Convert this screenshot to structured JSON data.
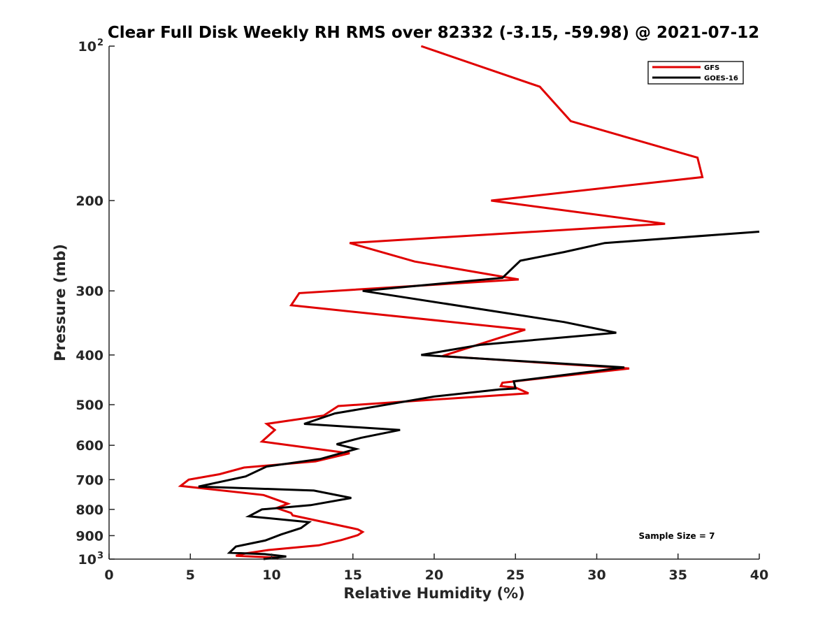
{
  "chart_data": {
    "type": "line",
    "title": "Clear Full Disk Weekly RH RMS over 82332 (-3.15, -59.98) @ 2021-07-12",
    "xlabel": "Relative Humidity (%)",
    "ylabel": "Pressure (mb)",
    "xlim": [
      0,
      40
    ],
    "ylim": [
      100,
      1000
    ],
    "y_scale": "log",
    "y_reversed": true,
    "grid": false,
    "legend_position": "top-right",
    "x_ticks": [
      0,
      5,
      10,
      15,
      20,
      25,
      30,
      35,
      40
    ],
    "y_ticks": [
      {
        "value": 100,
        "label": "10",
        "sup": "2"
      },
      {
        "value": 200,
        "label": "200"
      },
      {
        "value": 300,
        "label": "300"
      },
      {
        "value": 400,
        "label": "400"
      },
      {
        "value": 500,
        "label": "500"
      },
      {
        "value": 600,
        "label": "600"
      },
      {
        "value": 700,
        "label": "700"
      },
      {
        "value": 800,
        "label": "800"
      },
      {
        "value": 900,
        "label": "900"
      },
      {
        "value": 1000,
        "label": "10",
        "sup": "3"
      }
    ],
    "annotation": "Sample Size = 7",
    "series": [
      {
        "name": "GFS",
        "color": "#e00000",
        "points": [
          [
            19.2,
            100
          ],
          [
            26.5,
            120
          ],
          [
            28.4,
            140
          ],
          [
            36.2,
            165
          ],
          [
            36.5,
            180
          ],
          [
            23.5,
            200
          ],
          [
            34.2,
            222
          ],
          [
            14.8,
            242
          ],
          [
            18.8,
            263
          ],
          [
            25.2,
            285
          ],
          [
            11.7,
            303
          ],
          [
            11.2,
            320
          ],
          [
            25.6,
            357
          ],
          [
            20.5,
            402
          ],
          [
            32.0,
            425
          ],
          [
            24.2,
            453
          ],
          [
            24.1,
            460
          ],
          [
            25.0,
            463
          ],
          [
            25.8,
            475
          ],
          [
            14.1,
            503
          ],
          [
            13.2,
            525
          ],
          [
            9.7,
            545
          ],
          [
            10.2,
            560
          ],
          [
            9.4,
            590
          ],
          [
            14.8,
            622
          ],
          [
            12.7,
            645
          ],
          [
            8.3,
            663
          ],
          [
            6.8,
            683
          ],
          [
            4.9,
            700
          ],
          [
            4.4,
            720
          ],
          [
            9.5,
            750
          ],
          [
            11.0,
            780
          ],
          [
            10.3,
            795
          ],
          [
            11.2,
            813
          ],
          [
            11.3,
            822
          ],
          [
            15.3,
            875
          ],
          [
            15.6,
            885
          ],
          [
            15.3,
            898
          ],
          [
            14.3,
            918
          ],
          [
            12.9,
            940
          ],
          [
            9.8,
            960
          ],
          [
            8.4,
            975
          ],
          [
            7.8,
            985
          ],
          [
            10.3,
            993
          ],
          [
            10.4,
            1000
          ]
        ]
      },
      {
        "name": "GOES-16",
        "color": "#000000",
        "points": [
          [
            40.0,
            230
          ],
          [
            30.5,
            242
          ],
          [
            28.0,
            252
          ],
          [
            25.3,
            262
          ],
          [
            24.2,
            283
          ],
          [
            15.6,
            300
          ],
          [
            28.0,
            345
          ],
          [
            31.2,
            362
          ],
          [
            22.9,
            382
          ],
          [
            19.2,
            400
          ],
          [
            31.7,
            423
          ],
          [
            24.9,
            450
          ],
          [
            25.0,
            465
          ],
          [
            24.0,
            467
          ],
          [
            20.0,
            482
          ],
          [
            13.9,
            520
          ],
          [
            12.0,
            545
          ],
          [
            17.9,
            560
          ],
          [
            15.5,
            580
          ],
          [
            14.0,
            597
          ],
          [
            15.2,
            610
          ],
          [
            13.0,
            638
          ],
          [
            9.7,
            660
          ],
          [
            8.4,
            690
          ],
          [
            5.5,
            722
          ],
          [
            12.6,
            735
          ],
          [
            14.9,
            760
          ],
          [
            12.4,
            785
          ],
          [
            9.4,
            800
          ],
          [
            8.6,
            825
          ],
          [
            12.3,
            847
          ],
          [
            11.8,
            870
          ],
          [
            10.6,
            895
          ],
          [
            9.6,
            920
          ],
          [
            7.8,
            945
          ],
          [
            7.4,
            972
          ],
          [
            9.6,
            978
          ],
          [
            10.9,
            988
          ],
          [
            9.5,
            1000
          ]
        ]
      }
    ]
  }
}
